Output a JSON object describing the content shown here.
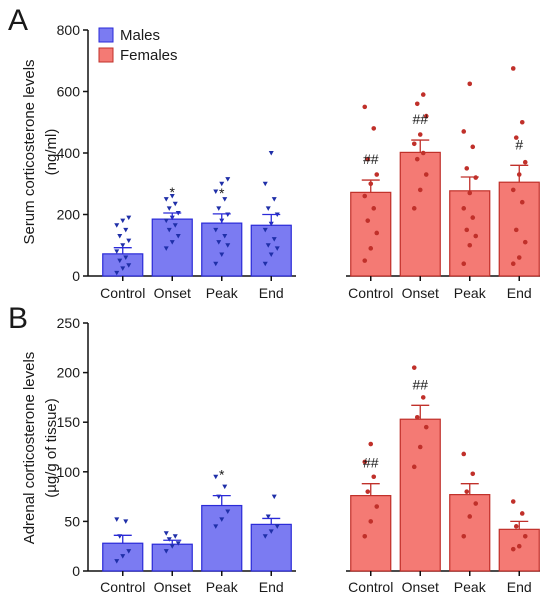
{
  "colors": {
    "male_bar": "#7b7bf2",
    "male_edge": "#2a2ad8",
    "male_dot": "#1f2fa8",
    "female_bar": "#f47a74",
    "female_edge": "#c0302a",
    "female_dot": "#c0302a",
    "axis": "#111111"
  },
  "legend": {
    "items": [
      {
        "label": "Males",
        "color": "#7b7bf2"
      },
      {
        "label": "Females",
        "color": "#f47a74"
      }
    ]
  },
  "chart_data": [
    {
      "panel": "A",
      "type": "bar",
      "ylabel": [
        "Serum corticosterone levels",
        "(ng/ml)"
      ],
      "ylim": [
        0,
        800
      ],
      "yticks": [
        "0",
        "200",
        "400",
        "600",
        "800"
      ],
      "categories": [
        "Control",
        "Onset",
        "Peak",
        "End"
      ],
      "series": [
        {
          "name": "Males",
          "values": [
            72,
            185,
            172,
            165
          ],
          "sem": [
            20,
            20,
            30,
            35
          ],
          "annotations": [
            "",
            "*",
            "*",
            ""
          ],
          "points": [
            [
              10,
              25,
              35,
              50,
              60,
              80,
              100,
              115,
              130,
              150,
              165,
              180,
              190
            ],
            [
              90,
              110,
              130,
              150,
              165,
              180,
              190,
              205,
              220,
              235,
              250,
              260
            ],
            [
              40,
              70,
              100,
              110,
              130,
              150,
              180,
              200,
              220,
              250,
              275,
              300,
              315
            ],
            [
              40,
              70,
              90,
              100,
              120,
              150,
              170,
              200,
              220,
              250,
              300,
              400
            ]
          ]
        },
        {
          "name": "Females",
          "values": [
            272,
            402,
            277,
            305
          ],
          "sem": [
            40,
            40,
            45,
            55
          ],
          "annotations": [
            "##",
            "##",
            "",
            "#"
          ],
          "points": [
            [
              50,
              90,
              140,
              180,
              220,
              260,
              300,
              330,
              380,
              480,
              550
            ],
            [
              220,
              280,
              330,
              380,
              400,
              430,
              460,
              520,
              560,
              590
            ],
            [
              40,
              100,
              130,
              150,
              190,
              220,
              270,
              320,
              350,
              420,
              470,
              625
            ],
            [
              40,
              60,
              110,
              150,
              240,
              280,
              330,
              370,
              450,
              500,
              675
            ]
          ]
        }
      ]
    },
    {
      "panel": "B",
      "type": "bar",
      "ylabel": [
        "Adrenal corticosterone levels",
        "(µg/g of tissue)"
      ],
      "ylim": [
        0,
        250
      ],
      "yticks": [
        "0",
        "50",
        "100",
        "150",
        "200",
        "250"
      ],
      "categories": [
        "Control",
        "Onset",
        "Peak",
        "End"
      ],
      "series": [
        {
          "name": "Males",
          "values": [
            28,
            27,
            66,
            47
          ],
          "sem": [
            8,
            4,
            10,
            6
          ],
          "annotations": [
            "",
            "",
            "*",
            ""
          ],
          "points": [
            [
              10,
              15,
              20,
              35,
              50,
              52
            ],
            [
              20,
              25,
              28,
              32,
              35,
              38
            ],
            [
              45,
              52,
              60,
              75,
              85,
              95
            ],
            [
              35,
              40,
              45,
              55,
              75
            ]
          ]
        },
        {
          "name": "Females",
          "values": [
            76,
            153,
            77,
            42
          ],
          "sem": [
            12,
            14,
            11,
            8
          ],
          "annotations": [
            "##",
            "##",
            "",
            ""
          ],
          "points": [
            [
              35,
              50,
              65,
              80,
              95,
              110,
              128
            ],
            [
              105,
              125,
              145,
              155,
              175,
              205
            ],
            [
              35,
              55,
              68,
              80,
              98,
              118
            ],
            [
              22,
              25,
              35,
              45,
              58,
              70
            ]
          ]
        }
      ]
    }
  ]
}
